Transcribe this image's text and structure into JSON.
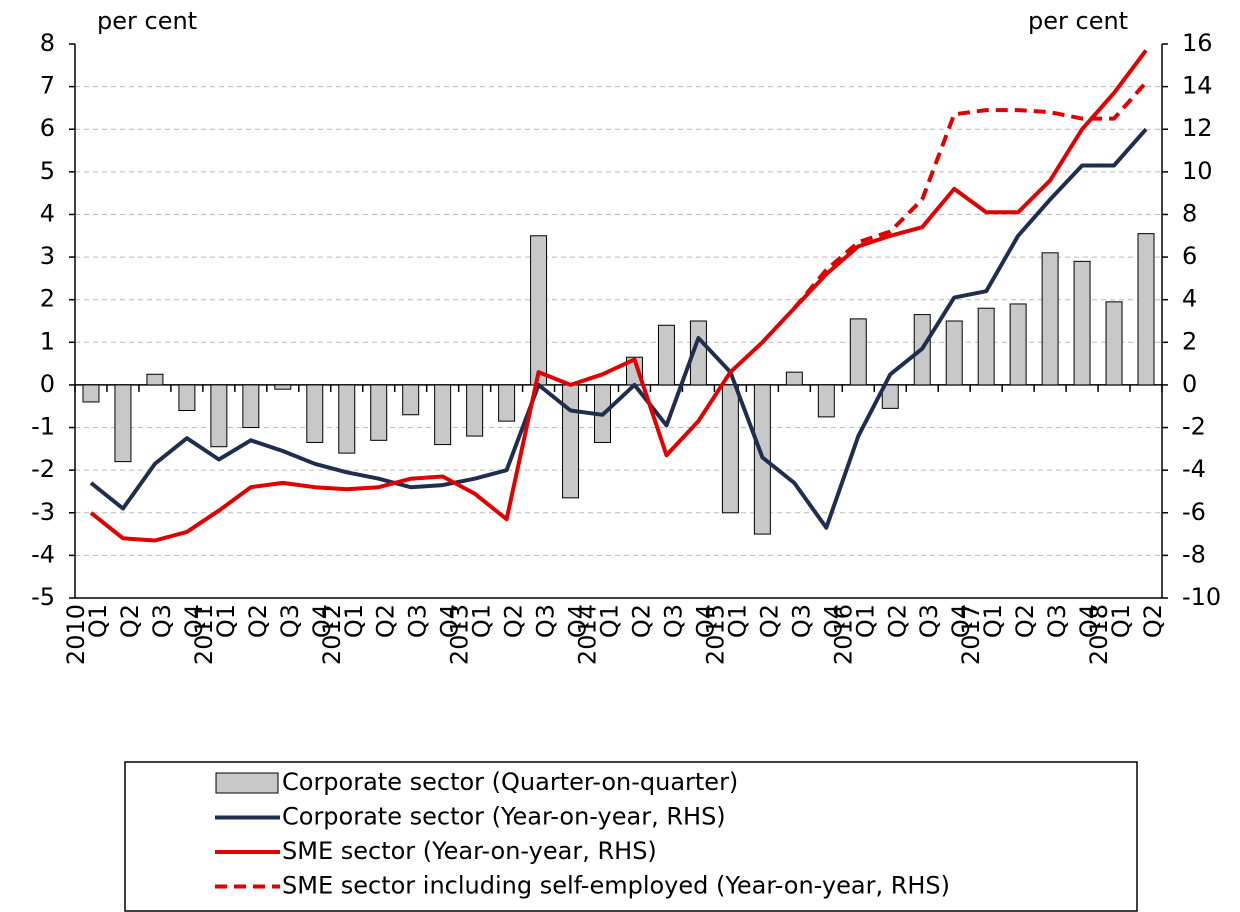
{
  "chart_data": {
    "type": "combo",
    "y_label": "per cent",
    "y2_label": "per cent",
    "categories": [
      "Q1",
      "Q2",
      "Q3",
      "Q4",
      "Q1",
      "Q2",
      "Q3",
      "Q4",
      "Q1",
      "Q2",
      "Q3",
      "Q4",
      "Q1",
      "Q2",
      "Q3",
      "Q4",
      "Q1",
      "Q2",
      "Q3",
      "Q4",
      "Q1",
      "Q2",
      "Q3",
      "Q4",
      "Q1",
      "Q2",
      "Q3",
      "Q4",
      "Q1",
      "Q2",
      "Q3",
      "Q4",
      "Q1",
      "Q2"
    ],
    "years": [
      "2010",
      null,
      null,
      null,
      "2011",
      null,
      null,
      null,
      "2012",
      null,
      null,
      null,
      "2013",
      null,
      null,
      null,
      "2014",
      null,
      null,
      null,
      "2015",
      null,
      null,
      null,
      "2016",
      null,
      null,
      null,
      "2017",
      null,
      null,
      null,
      "2018",
      null
    ],
    "ylim": [
      -5,
      8
    ],
    "yticks": [
      -5,
      -4,
      -3,
      -2,
      -1,
      0,
      1,
      2,
      3,
      4,
      5,
      6,
      7,
      8
    ],
    "y2lim": [
      -10,
      16
    ],
    "y2ticks": [
      -10,
      -8,
      -6,
      -4,
      -2,
      0,
      2,
      4,
      6,
      8,
      10,
      12,
      14,
      16
    ],
    "grid": true,
    "series": [
      {
        "name": "Corporate sector (Quarter-on-quarter)",
        "type": "bar",
        "color": "#c8c8c8",
        "values": [
          -0.4,
          -1.8,
          0.25,
          -0.6,
          -1.45,
          -1.0,
          -0.1,
          -1.35,
          -1.6,
          -1.3,
          -0.7,
          -1.4,
          -1.2,
          -0.85,
          3.5,
          -2.65,
          -1.35,
          0.65,
          1.4,
          1.5,
          -3.0,
          -3.5,
          0.3,
          -0.75,
          1.55,
          -0.55,
          1.65,
          1.5,
          1.8,
          1.9,
          3.1,
          2.9,
          1.95,
          3.55
        ]
      },
      {
        "name": "Corporate sector (Year-on-year, RHS)",
        "type": "line",
        "axis": "y2",
        "color": "#1f2d4f",
        "values": [
          -4.6,
          -5.8,
          -3.7,
          -2.5,
          -3.5,
          -2.6,
          -3.1,
          -3.7,
          -4.1,
          -4.4,
          -4.8,
          -4.7,
          -4.4,
          -4.0,
          0,
          -1.2,
          -1.4,
          0,
          -1.9,
          2.2,
          0.6,
          -3.4,
          -4.6,
          -6.7,
          -2.4,
          0.5,
          1.7,
          4.1,
          4.4,
          7.0,
          8.7,
          10.3,
          10.3,
          12.0
        ]
      },
      {
        "name": "SME sector (Year-on-year, RHS)",
        "type": "line",
        "axis": "y2",
        "color": "#e00000",
        "values": [
          -6.0,
          -7.2,
          -7.3,
          -6.9,
          -5.9,
          -4.8,
          -4.6,
          -4.8,
          -4.9,
          -4.8,
          -4.4,
          -4.3,
          -5.1,
          -6.3,
          0.6,
          0,
          0.5,
          1.2,
          -3.3,
          -1.7,
          0.6,
          2.0,
          3.6,
          5.2,
          6.5,
          7.0,
          7.4,
          9.2,
          8.1,
          8.1,
          9.6,
          12.0,
          13.7,
          15.7
        ]
      },
      {
        "name": "SME sector including self-employed (Year-on-year, RHS)",
        "type": "line",
        "axis": "y2",
        "color": "#e00000",
        "dashed": true,
        "values": [
          null,
          null,
          null,
          null,
          null,
          null,
          null,
          null,
          null,
          null,
          null,
          null,
          null,
          null,
          null,
          null,
          null,
          null,
          null,
          null,
          null,
          null,
          3.6,
          5.4,
          6.7,
          7.2,
          8.7,
          12.7,
          12.9,
          12.9,
          12.8,
          12.5,
          12.5,
          14.2
        ]
      }
    ]
  }
}
